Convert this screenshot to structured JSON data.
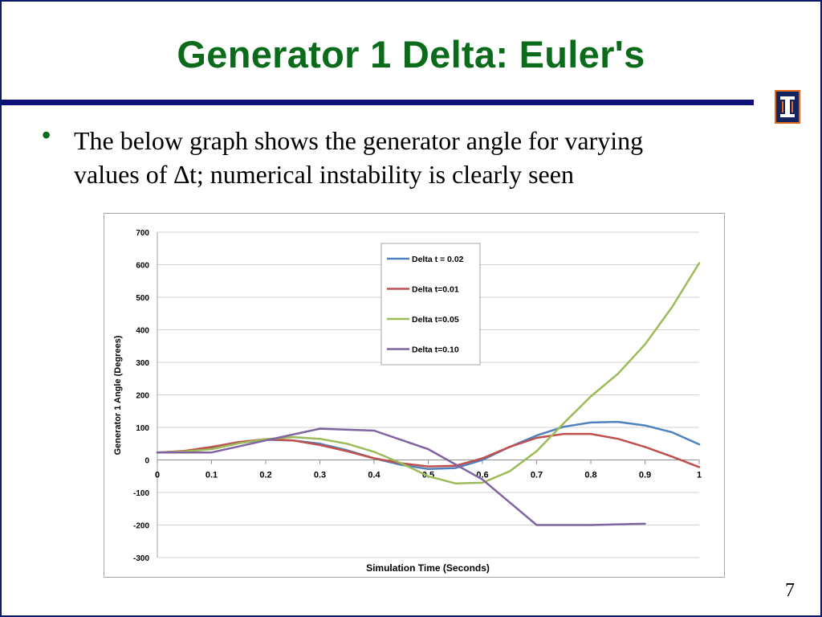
{
  "slide": {
    "title": "Generator 1 Delta: Euler's",
    "bullet_symbol": "•",
    "bullet_line1": "The below graph shows the generator angle for varying",
    "bullet_line2": "values of ∆t; numerical instability is clearly seen",
    "page_number": "7",
    "logo_glyph": "I",
    "colors": {
      "title": "#0a6b1a",
      "rule": "#10107a",
      "frame": "#0b1a6b"
    }
  },
  "chart_data": {
    "type": "line",
    "xlabel": "Simulation Time (Seconds)",
    "ylabel": "Generator 1 Angle (Degrees)",
    "xlim": [
      0,
      1
    ],
    "ylim": [
      -300,
      700
    ],
    "xticks": [
      0,
      0.1,
      0.2,
      0.3,
      0.4,
      0.5,
      0.6,
      0.7,
      0.8,
      0.9,
      1
    ],
    "xtick_labels": [
      "0",
      "0.1",
      "0.2",
      "0.3",
      "0.4",
      "0.5",
      "0.6",
      "0.7",
      "0.8",
      "0.9",
      "1"
    ],
    "yticks": [
      -300,
      -200,
      -100,
      0,
      100,
      200,
      300,
      400,
      500,
      600,
      700
    ],
    "ytick_labels": [
      "-300",
      "-200",
      "-100",
      "0",
      "100",
      "200",
      "300",
      "400",
      "500",
      "600",
      "700"
    ],
    "grid": true,
    "legend_position": "top-center",
    "series": [
      {
        "name": "Delta t = 0.02",
        "color": "#4f81bd",
        "x": [
          0,
          0.05,
          0.1,
          0.15,
          0.2,
          0.25,
          0.3,
          0.35,
          0.4,
          0.45,
          0.5,
          0.55,
          0.6,
          0.65,
          0.7,
          0.75,
          0.8,
          0.85,
          0.9,
          0.95,
          1.0
        ],
        "y": [
          23,
          27,
          37,
          52,
          62,
          60,
          50,
          30,
          5,
          -15,
          -28,
          -25,
          0,
          40,
          75,
          102,
          115,
          117,
          106,
          85,
          48
        ]
      },
      {
        "name": "Delta t=0.01",
        "color": "#c0504d",
        "x": [
          0,
          0.05,
          0.1,
          0.15,
          0.2,
          0.25,
          0.3,
          0.35,
          0.4,
          0.45,
          0.5,
          0.55,
          0.6,
          0.65,
          0.7,
          0.75,
          0.8,
          0.85,
          0.9,
          0.95,
          1.0
        ],
        "y": [
          23,
          28,
          40,
          55,
          64,
          60,
          46,
          27,
          5,
          -10,
          -20,
          -18,
          5,
          40,
          68,
          80,
          80,
          65,
          40,
          10,
          -22
        ]
      },
      {
        "name": "Delta t=0.05",
        "color": "#9bbb59",
        "x": [
          0,
          0.05,
          0.1,
          0.15,
          0.2,
          0.25,
          0.3,
          0.35,
          0.4,
          0.45,
          0.5,
          0.55,
          0.6,
          0.65,
          0.7,
          0.75,
          0.8,
          0.85,
          0.9,
          0.95,
          1.0
        ],
        "y": [
          23,
          26,
          33,
          51,
          64,
          70,
          65,
          50,
          25,
          -10,
          -50,
          -72,
          -70,
          -35,
          27,
          113,
          195,
          265,
          355,
          470,
          605
        ]
      },
      {
        "name": "Delta t=0.10",
        "color": "#8064a2",
        "x": [
          0,
          0.1,
          0.2,
          0.3,
          0.4,
          0.5,
          0.6,
          0.7,
          0.8,
          0.9
        ],
        "y": [
          23,
          23,
          60,
          96,
          90,
          33,
          -60,
          -200,
          -200,
          -196
        ]
      }
    ]
  }
}
